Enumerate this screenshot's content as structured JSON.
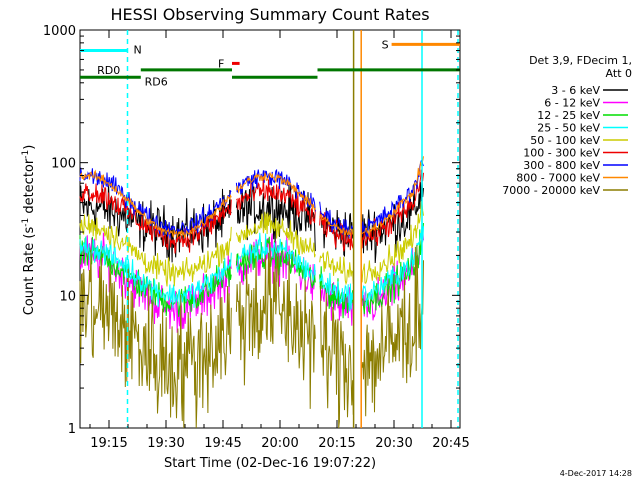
{
  "chart_data": {
    "type": "line",
    "title": "HESSI Observing Summary Count Rates",
    "xlabel": "Start Time (02-Dec-16 19:07:22)",
    "ylabel_main": "Count Rate (s",
    "ylabel_sup1": "-1",
    "ylabel_mid": " detector",
    "ylabel_sup2": "-1",
    "ylabel_end": ")",
    "y_scale": "log",
    "ylim": [
      1,
      1000
    ],
    "xlim_minutes": [
      0,
      100
    ],
    "x_ticks": [
      {
        "t": 7.63,
        "label": "19:15"
      },
      {
        "t": 22.63,
        "label": "19:30"
      },
      {
        "t": 37.63,
        "label": "19:45"
      },
      {
        "t": 52.63,
        "label": "20:00"
      },
      {
        "t": 67.63,
        "label": "20:15"
      },
      {
        "t": 82.63,
        "label": "20:30"
      },
      {
        "t": 97.63,
        "label": "20:45"
      }
    ],
    "y_ticks": [
      {
        "v": 1,
        "label": "1"
      },
      {
        "v": 10,
        "label": "10"
      },
      {
        "v": 100,
        "label": "100"
      },
      {
        "v": 1000,
        "label": "1000"
      }
    ],
    "legend_header": [
      "Det 3,9, FDecim 1,",
      "Att 0"
    ],
    "legend_position": "right",
    "series": [
      {
        "name": "3 - 6 keV",
        "color": "#000000",
        "base": 37,
        "amp": 0.1,
        "noise": 0.16
      },
      {
        "name": "6 - 12 keV",
        "color": "#ff00ff",
        "base": 12.5,
        "amp": 0.2,
        "noise": 0.14
      },
      {
        "name": "12 - 25 keV",
        "color": "#00dd00",
        "base": 13.5,
        "amp": 0.18,
        "noise": 0.1
      },
      {
        "name": "25 - 50 keV",
        "color": "#00ffff",
        "base": 15,
        "amp": 0.18,
        "noise": 0.08
      },
      {
        "name": "50 - 100 keV",
        "color": "#cccc00",
        "base": 22,
        "amp": 0.18,
        "noise": 0.08
      },
      {
        "name": "100 - 300 keV",
        "color": "#ee0000",
        "base": 40,
        "amp": 0.18,
        "noise": 0.08
      },
      {
        "name": "300 - 800 keV",
        "color": "#0000ff",
        "base": 50,
        "amp": 0.2,
        "noise": 0.06
      },
      {
        "name": "800 - 7000 keV",
        "color": "#ff8800",
        "base": 48,
        "amp": 0.22,
        "noise": 0.03
      },
      {
        "name": "7000 - 20000 keV",
        "color": "#8b7d00",
        "base": 5,
        "amp": 0.22,
        "noise": 0.4
      }
    ],
    "annotations": {
      "N": {
        "label": "N",
        "color": "#00ffff",
        "t0": 0,
        "t1": 12.5,
        "v": 700
      },
      "S": {
        "label": "S",
        "color": "#ff8800",
        "t0": 82,
        "t1": 100,
        "v": 780
      },
      "F": {
        "label": "F",
        "color": "#ee0000",
        "t0": 40,
        "t1": 42,
        "v": 560
      },
      "RD0": {
        "label": "RD0",
        "color": "#007700",
        "v": 500
      },
      "RD6": {
        "label": "RD6",
        "color": "#007700",
        "v": 440
      },
      "rd_segments": [
        {
          "t0": 0,
          "t1": 16,
          "v": 440
        },
        {
          "t0": 16,
          "t1": 40,
          "v": 500
        },
        {
          "t0": 40,
          "t1": 62.5,
          "v": 440
        },
        {
          "t0": 62.5,
          "t1": 100,
          "v": 500
        }
      ],
      "vlines": [
        {
          "t": 12.5,
          "color": "#00ffff",
          "dash": true
        },
        {
          "t": 72,
          "color": "#8b7d00",
          "dash": false
        },
        {
          "t": 74,
          "color": "#ff8800",
          "dash": false
        },
        {
          "t": 90,
          "color": "#00ffff",
          "dash": false
        },
        {
          "t": 101,
          "color": "#00ffff",
          "dash": true
        }
      ]
    },
    "gaps": [
      [
        40,
        41
      ],
      [
        62,
        63
      ],
      [
        72,
        74
      ]
    ],
    "footer_date": "4-Dec-2017 14:28"
  }
}
